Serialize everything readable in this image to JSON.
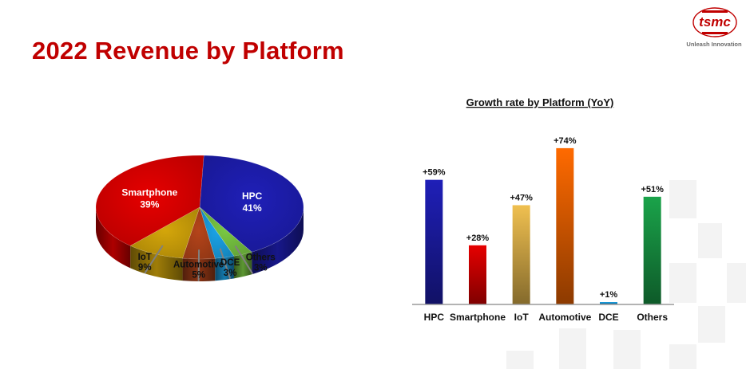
{
  "page": {
    "title": "2022 Revenue by Platform"
  },
  "logo": {
    "name": "tsmc",
    "tagline": "Unleash Innovation",
    "color": "#c00000"
  },
  "chart_data": [
    {
      "type": "pie",
      "title": "",
      "slices": [
        {
          "label": "HPC",
          "value": 41,
          "display": "41%",
          "color": "#1f1fb8"
        },
        {
          "label": "Others",
          "value": 3,
          "display": "3%",
          "color": "#7ac943"
        },
        {
          "label": "DCE",
          "value": 3,
          "display": "3%",
          "color": "#1aa3e8"
        },
        {
          "label": "Automotive",
          "value": 5,
          "display": "5%",
          "color": "#b5441a"
        },
        {
          "label": "IoT",
          "value": 9,
          "display": "9%",
          "color": "#d4a60a"
        },
        {
          "label": "Smartphone",
          "value": 39,
          "display": "39%",
          "color": "#e60000"
        }
      ]
    },
    {
      "type": "bar",
      "title": "Growth rate by Platform (YoY)",
      "categories": [
        "HPC",
        "Smartphone",
        "IoT",
        "Automotive",
        "DCE",
        "Others"
      ],
      "values": [
        59,
        28,
        47,
        74,
        1,
        51
      ],
      "data_labels": [
        "+59%",
        "+28%",
        "+47%",
        "+74%",
        "+1%",
        "+51%"
      ],
      "colors": [
        "#1f1fb8",
        "#e60000",
        "#f0c050",
        "#ff6a00",
        "#1aa3e8",
        "#1aa34a"
      ],
      "ylim": [
        0,
        80
      ],
      "grid": false,
      "legend": "none"
    }
  ]
}
